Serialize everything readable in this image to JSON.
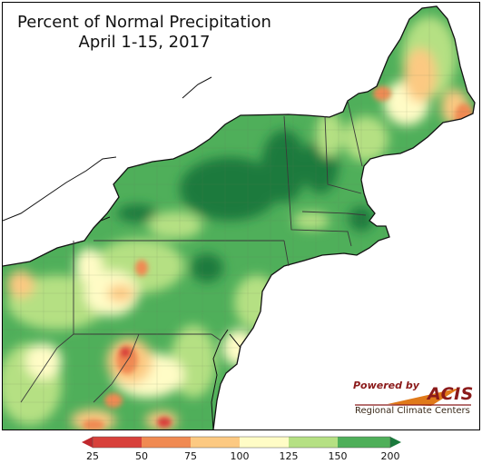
{
  "title": {
    "line1": "Percent of Normal Precipitation",
    "line2": "April 1-15, 2017"
  },
  "logo": {
    "powered_by": "Powered by",
    "acis": "ACIS",
    "regional": "Regional Climate Centers"
  },
  "legend": {
    "ticks": [
      "25",
      "50",
      "75",
      "100",
      "125",
      "150",
      "200"
    ],
    "colors": {
      "below_25": "#c0282d",
      "25_50": "#d8413b",
      "50_75": "#f08a52",
      "75_100": "#fcc982",
      "100_125": "#fffcc6",
      "125_150": "#b5e083",
      "150_200": "#4faf5a",
      "above_200": "#1a7a3c"
    }
  },
  "colors": {
    "land_base": "#4faf5a",
    "water": "#ffffff",
    "state_border": "#3a3a3a",
    "coast": "#111111"
  }
}
